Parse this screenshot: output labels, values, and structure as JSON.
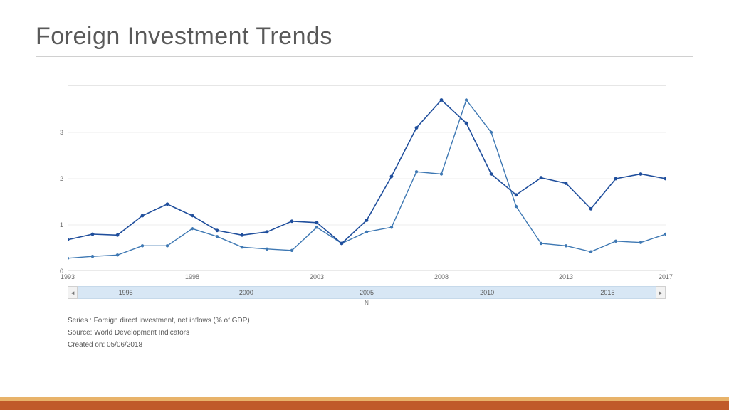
{
  "title": "Foreign Investment Trends",
  "chart": {
    "type": "line",
    "x_start": 1993,
    "x_end": 2017,
    "y_min": 0,
    "y_max": 4,
    "y_ticks": [
      0,
      1,
      2,
      3
    ],
    "x_ticks": [
      1993,
      1998,
      2003,
      2008,
      2013,
      2017
    ],
    "grid_color": "#ededed",
    "axis_color": "#d6d6d6",
    "background": "#ffffff",
    "label_color": "#6b6b6b",
    "label_fontsize": 9,
    "series": [
      {
        "name": "series-a",
        "color": "#3e78b3",
        "stroke_width": 1.4,
        "marker": "circle",
        "marker_size": 2.2,
        "points": [
          {
            "x": 1993,
            "y": 0.28
          },
          {
            "x": 1994,
            "y": 0.32
          },
          {
            "x": 1995,
            "y": 0.35
          },
          {
            "x": 1996,
            "y": 0.55
          },
          {
            "x": 1997,
            "y": 0.55
          },
          {
            "x": 1998,
            "y": 0.92
          },
          {
            "x": 1999,
            "y": 0.75
          },
          {
            "x": 2000,
            "y": 0.52
          },
          {
            "x": 2001,
            "y": 0.48
          },
          {
            "x": 2002,
            "y": 0.45
          },
          {
            "x": 2003,
            "y": 0.95
          },
          {
            "x": 2004,
            "y": 0.6
          },
          {
            "x": 2005,
            "y": 0.85
          },
          {
            "x": 2006,
            "y": 0.95
          },
          {
            "x": 2007,
            "y": 2.15
          },
          {
            "x": 2008,
            "y": 2.1
          },
          {
            "x": 2009,
            "y": 3.7
          },
          {
            "x": 2010,
            "y": 3.0
          },
          {
            "x": 2011,
            "y": 1.4
          },
          {
            "x": 2012,
            "y": 0.6
          },
          {
            "x": 2013,
            "y": 0.55
          },
          {
            "x": 2014,
            "y": 0.42
          },
          {
            "x": 2015,
            "y": 0.65
          },
          {
            "x": 2016,
            "y": 0.62
          },
          {
            "x": 2017,
            "y": 0.8
          }
        ]
      },
      {
        "name": "series-b",
        "color": "#1f4e9c",
        "stroke_width": 1.6,
        "marker": "circle",
        "marker_size": 2.4,
        "points": [
          {
            "x": 1993,
            "y": 0.68
          },
          {
            "x": 1994,
            "y": 0.8
          },
          {
            "x": 1995,
            "y": 0.78
          },
          {
            "x": 1996,
            "y": 1.2
          },
          {
            "x": 1997,
            "y": 1.45
          },
          {
            "x": 1998,
            "y": 1.2
          },
          {
            "x": 1999,
            "y": 0.88
          },
          {
            "x": 2000,
            "y": 0.78
          },
          {
            "x": 2001,
            "y": 0.85
          },
          {
            "x": 2002,
            "y": 1.08
          },
          {
            "x": 2003,
            "y": 1.05
          },
          {
            "x": 2004,
            "y": 0.6
          },
          {
            "x": 2005,
            "y": 1.1
          },
          {
            "x": 2006,
            "y": 2.05
          },
          {
            "x": 2007,
            "y": 3.1
          },
          {
            "x": 2008,
            "y": 3.7
          },
          {
            "x": 2009,
            "y": 3.2
          },
          {
            "x": 2010,
            "y": 2.1
          },
          {
            "x": 2011,
            "y": 1.65
          },
          {
            "x": 2012,
            "y": 2.02
          },
          {
            "x": 2013,
            "y": 1.9
          },
          {
            "x": 2014,
            "y": 1.35
          },
          {
            "x": 2015,
            "y": 2.0
          },
          {
            "x": 2016,
            "y": 2.1
          },
          {
            "x": 2017,
            "y": 2.0
          }
        ]
      }
    ]
  },
  "scrollbar": {
    "years": [
      1995,
      2000,
      2005,
      2010,
      2015
    ],
    "center_label": "N",
    "bg": "#d8e7f5",
    "btn_bg": "#f2f2f2"
  },
  "meta": {
    "series_line": "Series : Foreign direct investment, net inflows (% of GDP)",
    "source_line": "Source: World Development Indicators",
    "created_line": "Created on: 05/06/2018"
  },
  "footer": {
    "top_color": "#e8b36a",
    "bottom_color": "#c05a2a"
  }
}
